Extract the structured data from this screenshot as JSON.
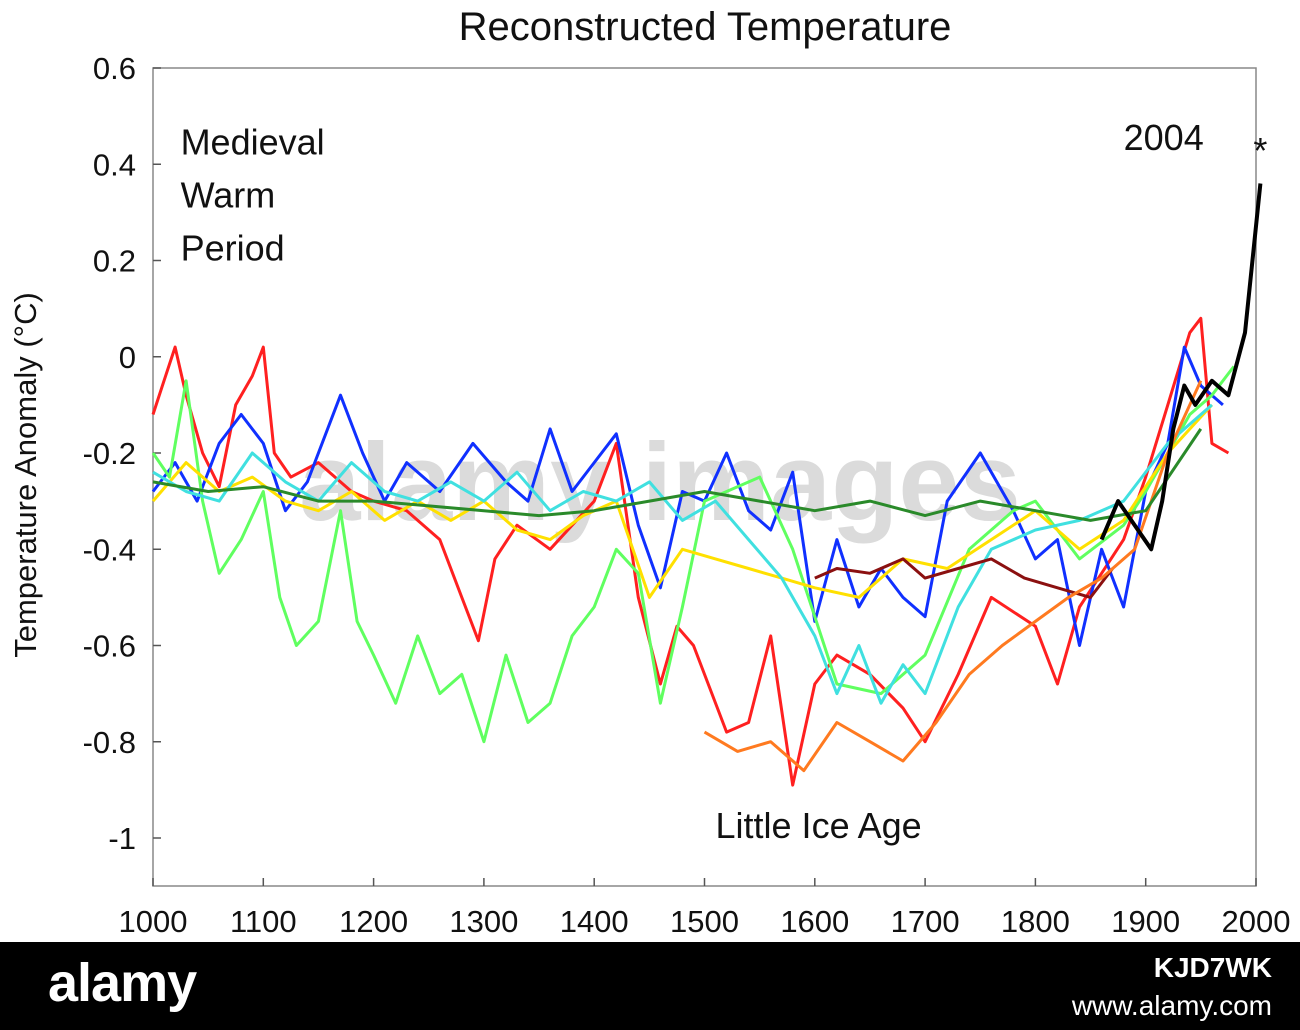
{
  "footer": {
    "brand": "alamy",
    "image_id": "KJD7WK",
    "site": "www.alamy.com"
  },
  "watermark": "alamy images",
  "chart_data": {
    "type": "line",
    "title": "Reconstructed Temperature",
    "xlabel": "",
    "ylabel": "Temperature Anomaly (°C)",
    "xlim": [
      1000,
      2000
    ],
    "ylim": [
      -1.1,
      0.6
    ],
    "xticks": [
      1000,
      1100,
      1200,
      1300,
      1400,
      1500,
      1600,
      1700,
      1800,
      1900,
      2000
    ],
    "yticks": [
      0.6,
      0.4,
      0.2,
      0,
      -0.2,
      -0.4,
      -0.6,
      -0.8,
      -1
    ],
    "ytick_labels": [
      "0.6",
      "0.4",
      "0.2",
      "0",
      "-0.2",
      "-0.4",
      "-0.6",
      "-0.8",
      "-1"
    ],
    "grid": false,
    "annotations": [
      {
        "text": "Medieval",
        "x": 1025,
        "y": 0.42
      },
      {
        "text": "Warm",
        "x": 1025,
        "y": 0.31
      },
      {
        "text": "Period",
        "x": 1025,
        "y": 0.2
      },
      {
        "text": "Little Ice Age",
        "x": 1510,
        "y": -1.0
      },
      {
        "text": "2004",
        "x": 1880,
        "y": 0.43
      }
    ],
    "marker": {
      "x": 2004,
      "y": 0.44,
      "symbol": "*"
    },
    "series": [
      {
        "color": "#ff2020",
        "x": [
          1000,
          1010,
          1020,
          1030,
          1045,
          1060,
          1075,
          1090,
          1100,
          1110,
          1125,
          1150,
          1180,
          1200,
          1230,
          1260,
          1280,
          1295,
          1310,
          1330,
          1360,
          1400,
          1420,
          1440,
          1460,
          1475,
          1490,
          1520,
          1540,
          1560,
          1580,
          1600,
          1620,
          1650,
          1680,
          1700,
          1730,
          1760,
          1800,
          1820,
          1840,
          1860,
          1880,
          1900,
          1920,
          1940,
          1950,
          1960,
          1975
        ],
        "y": [
          -0.12,
          -0.05,
          0.02,
          -0.08,
          -0.2,
          -0.27,
          -0.1,
          -0.04,
          0.02,
          -0.2,
          -0.25,
          -0.22,
          -0.28,
          -0.3,
          -0.32,
          -0.38,
          -0.5,
          -0.59,
          -0.42,
          -0.35,
          -0.4,
          -0.3,
          -0.18,
          -0.5,
          -0.68,
          -0.56,
          -0.6,
          -0.78,
          -0.76,
          -0.58,
          -0.89,
          -0.68,
          -0.62,
          -0.66,
          -0.73,
          -0.8,
          -0.66,
          -0.5,
          -0.56,
          -0.68,
          -0.52,
          -0.45,
          -0.38,
          -0.25,
          -0.1,
          0.05,
          0.08,
          -0.18,
          -0.2
        ]
      },
      {
        "color": "#1030ff",
        "x": [
          1000,
          1020,
          1040,
          1060,
          1080,
          1100,
          1120,
          1140,
          1170,
          1190,
          1210,
          1230,
          1260,
          1290,
          1320,
          1340,
          1360,
          1380,
          1400,
          1420,
          1440,
          1460,
          1480,
          1500,
          1520,
          1540,
          1560,
          1580,
          1600,
          1620,
          1640,
          1660,
          1680,
          1700,
          1720,
          1750,
          1780,
          1800,
          1820,
          1840,
          1860,
          1880,
          1900,
          1920,
          1935,
          1950,
          1970
        ],
        "y": [
          -0.28,
          -0.22,
          -0.3,
          -0.18,
          -0.12,
          -0.18,
          -0.32,
          -0.26,
          -0.08,
          -0.2,
          -0.3,
          -0.22,
          -0.28,
          -0.18,
          -0.26,
          -0.3,
          -0.15,
          -0.28,
          -0.22,
          -0.16,
          -0.35,
          -0.48,
          -0.28,
          -0.3,
          -0.2,
          -0.32,
          -0.36,
          -0.24,
          -0.55,
          -0.38,
          -0.52,
          -0.44,
          -0.5,
          -0.54,
          -0.3,
          -0.2,
          -0.32,
          -0.42,
          -0.38,
          -0.6,
          -0.4,
          -0.52,
          -0.28,
          -0.18,
          0.02,
          -0.06,
          -0.1
        ]
      },
      {
        "color": "#60ff60",
        "x": [
          1000,
          1015,
          1030,
          1045,
          1060,
          1080,
          1100,
          1115,
          1130,
          1150,
          1170,
          1185,
          1200,
          1220,
          1240,
          1260,
          1280,
          1300,
          1320,
          1340,
          1360,
          1380,
          1400,
          1420,
          1440,
          1460,
          1480,
          1500,
          1520,
          1550,
          1580,
          1620,
          1660,
          1700,
          1740,
          1780,
          1800,
          1840,
          1880,
          1900,
          1920,
          1940,
          1960,
          1980
        ],
        "y": [
          -0.2,
          -0.25,
          -0.05,
          -0.3,
          -0.45,
          -0.38,
          -0.28,
          -0.5,
          -0.6,
          -0.55,
          -0.32,
          -0.55,
          -0.62,
          -0.72,
          -0.58,
          -0.7,
          -0.66,
          -0.8,
          -0.62,
          -0.76,
          -0.72,
          -0.58,
          -0.52,
          -0.4,
          -0.45,
          -0.72,
          -0.52,
          -0.3,
          -0.28,
          -0.25,
          -0.4,
          -0.68,
          -0.7,
          -0.62,
          -0.4,
          -0.32,
          -0.3,
          -0.42,
          -0.35,
          -0.28,
          -0.2,
          -0.12,
          -0.08,
          -0.02
        ]
      },
      {
        "color": "#ffe000",
        "x": [
          1000,
          1030,
          1060,
          1090,
          1120,
          1150,
          1180,
          1210,
          1240,
          1270,
          1300,
          1330,
          1360,
          1390,
          1420,
          1450,
          1480,
          1510,
          1540,
          1570,
          1600,
          1640,
          1680,
          1720,
          1760,
          1800,
          1840,
          1880,
          1920,
          1960
        ],
        "y": [
          -0.3,
          -0.22,
          -0.28,
          -0.25,
          -0.3,
          -0.32,
          -0.28,
          -0.34,
          -0.3,
          -0.34,
          -0.3,
          -0.36,
          -0.38,
          -0.33,
          -0.3,
          -0.5,
          -0.4,
          -0.42,
          -0.44,
          -0.46,
          -0.48,
          -0.5,
          -0.42,
          -0.44,
          -0.38,
          -0.32,
          -0.4,
          -0.34,
          -0.2,
          -0.1
        ]
      },
      {
        "color": "#40e0e0",
        "x": [
          1000,
          1030,
          1060,
          1090,
          1120,
          1150,
          1180,
          1210,
          1240,
          1270,
          1300,
          1330,
          1360,
          1390,
          1420,
          1450,
          1480,
          1510,
          1540,
          1570,
          1600,
          1620,
          1640,
          1660,
          1680,
          1700,
          1730,
          1760,
          1800,
          1840,
          1880,
          1920,
          1960
        ],
        "y": [
          -0.24,
          -0.28,
          -0.3,
          -0.2,
          -0.26,
          -0.3,
          -0.22,
          -0.28,
          -0.3,
          -0.26,
          -0.3,
          -0.24,
          -0.32,
          -0.28,
          -0.3,
          -0.26,
          -0.34,
          -0.3,
          -0.38,
          -0.46,
          -0.58,
          -0.7,
          -0.6,
          -0.72,
          -0.64,
          -0.7,
          -0.52,
          -0.4,
          -0.36,
          -0.34,
          -0.3,
          -0.18,
          -0.1
        ]
      },
      {
        "color": "#8b1010",
        "x": [
          1600,
          1620,
          1650,
          1680,
          1700,
          1730,
          1760,
          1790,
          1820,
          1850,
          1870
        ],
        "y": [
          -0.46,
          -0.44,
          -0.45,
          -0.42,
          -0.46,
          -0.44,
          -0.42,
          -0.46,
          -0.48,
          -0.5,
          -0.44
        ]
      },
      {
        "color": "#ff7a20",
        "x": [
          1500,
          1530,
          1560,
          1590,
          1620,
          1650,
          1680,
          1710,
          1740,
          1770,
          1800,
          1830,
          1860,
          1890,
          1920,
          1950
        ],
        "y": [
          -0.78,
          -0.82,
          -0.8,
          -0.86,
          -0.76,
          -0.8,
          -0.84,
          -0.76,
          -0.66,
          -0.6,
          -0.55,
          -0.5,
          -0.46,
          -0.4,
          -0.2,
          -0.05
        ]
      },
      {
        "color": "#2a8a2a",
        "x": [
          1000,
          1050,
          1100,
          1150,
          1200,
          1250,
          1300,
          1350,
          1400,
          1450,
          1500,
          1550,
          1600,
          1650,
          1700,
          1750,
          1800,
          1850,
          1900,
          1950
        ],
        "y": [
          -0.26,
          -0.28,
          -0.27,
          -0.3,
          -0.3,
          -0.31,
          -0.32,
          -0.33,
          -0.32,
          -0.3,
          -0.28,
          -0.3,
          -0.32,
          -0.3,
          -0.33,
          -0.3,
          -0.32,
          -0.34,
          -0.32,
          -0.15
        ]
      },
      {
        "color": "#000000",
        "x": [
          1860,
          1875,
          1890,
          1905,
          1915,
          1925,
          1935,
          1945,
          1960,
          1975,
          1990,
          2004
        ],
        "y": [
          -0.38,
          -0.3,
          -0.35,
          -0.4,
          -0.3,
          -0.15,
          -0.06,
          -0.1,
          -0.05,
          -0.08,
          0.05,
          0.36
        ]
      }
    ]
  }
}
